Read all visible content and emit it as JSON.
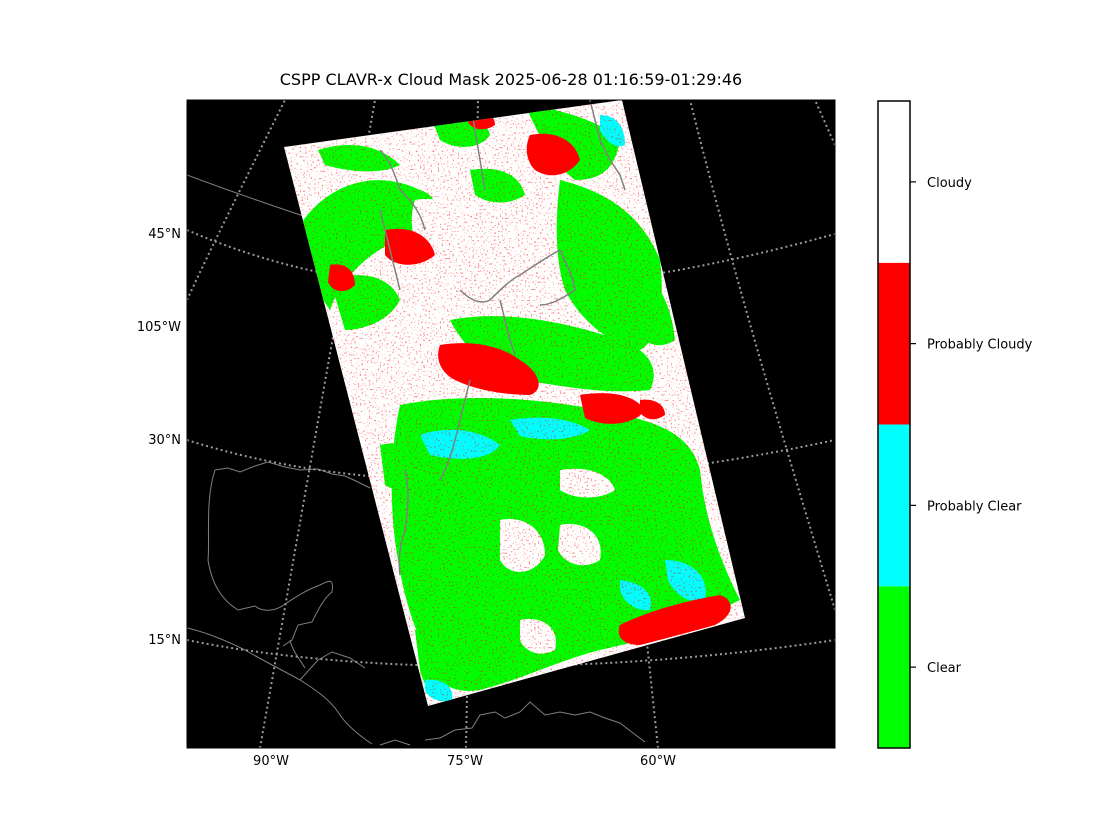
{
  "chart_data": {
    "type": "heatmap",
    "title": "CSPP CLAVR-x Cloud Mask 2025-06-28 01:16:59-01:29:46",
    "lat_labels": [
      "45°N",
      "105°W",
      "30°N",
      "15°N"
    ],
    "lon_labels": [
      "90°W",
      "75°W",
      "60°W"
    ],
    "categories": [
      "Clear",
      "Probably Clear",
      "Probably Cloudy",
      "Cloudy"
    ],
    "colors": {
      "Clear": "#00ff00",
      "Probably Clear": "#00ffff",
      "Probably Cloudy": "#ff0000",
      "Cloudy": "#ffffff",
      "background": "#000000",
      "coastline": "#808080",
      "gridline": "#9a9a9a"
    },
    "grid": true,
    "gridline_style": "dotted",
    "colorbar_position": "right",
    "projection": "lambert-conformal"
  }
}
